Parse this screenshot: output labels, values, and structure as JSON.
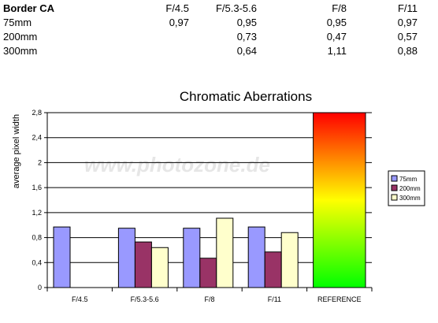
{
  "table": {
    "header": [
      "Border CA",
      "F/4.5",
      "F/5.3-5.6",
      "F/8",
      "F/11"
    ],
    "rows": [
      [
        "75mm",
        "0,97",
        "0,95",
        "0,95",
        "0,97"
      ],
      [
        "200mm",
        "",
        "0,73",
        "0,47",
        "0,57"
      ],
      [
        "300mm",
        "",
        "0,64",
        "1,11",
        "0,88"
      ]
    ]
  },
  "watermark": "www.photozone.de",
  "chart_data": {
    "type": "bar",
    "title": "Chromatic Aberrations",
    "xlabel": "",
    "ylabel": "average pixel width",
    "ylim": [
      0,
      2.8
    ],
    "yticks": [
      0,
      0.4,
      0.8,
      1.2,
      1.6,
      2,
      2.4,
      2.8
    ],
    "ytick_labels": [
      "0",
      "0,4",
      "0,8",
      "1,2",
      "1,6",
      "2",
      "2,4",
      "2,8"
    ],
    "grid": true,
    "legend": "right",
    "categories": [
      "F/4.5",
      "F/5.3-5.6",
      "F/8",
      "F/11",
      "REFERENCE"
    ],
    "series": [
      {
        "name": "75mm",
        "color": "#9999ff",
        "values": [
          0.97,
          0.95,
          0.95,
          0.97,
          null
        ]
      },
      {
        "name": "200mm",
        "color": "#993366",
        "values": [
          null,
          0.73,
          0.47,
          0.57,
          null
        ]
      },
      {
        "name": "300mm",
        "color": "#ffffcc",
        "values": [
          null,
          0.64,
          1.11,
          0.88,
          null
        ]
      }
    ],
    "reference_bar": {
      "category": "REFERENCE",
      "value": 2.8,
      "gradient": [
        "#ff0000",
        "#ffff00",
        "#00ff00"
      ]
    }
  }
}
